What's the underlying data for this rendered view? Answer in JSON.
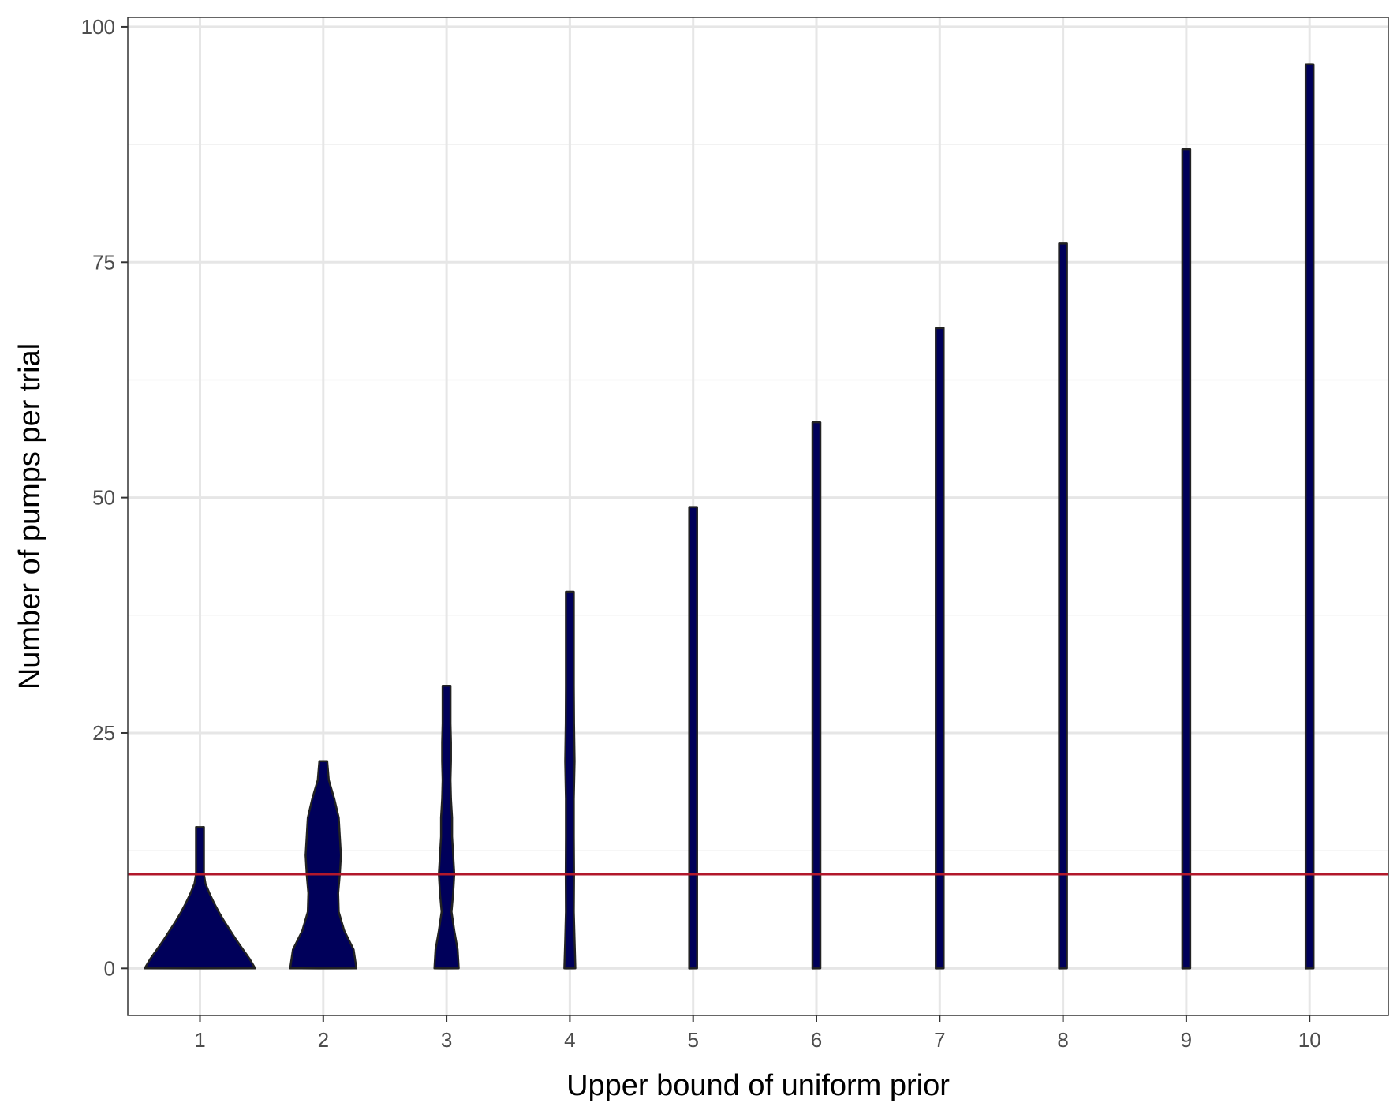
{
  "chart_data": {
    "type": "violin",
    "xlabel": "Upper bound of uniform prior",
    "ylabel": "Number of pumps per trial",
    "categories": [
      "1",
      "2",
      "3",
      "4",
      "5",
      "6",
      "7",
      "8",
      "9",
      "10"
    ],
    "ylim": [
      -5,
      101
    ],
    "yticks": [
      0,
      25,
      50,
      75,
      100
    ],
    "grid": true,
    "reference_line": {
      "y": 10,
      "color": "#b2182b"
    },
    "fill_color": "#00005a",
    "outline_color": "#222222",
    "series": [
      {
        "x": "1",
        "min": 0,
        "max": 15,
        "density": [
          [
            0,
            1.0
          ],
          [
            1,
            0.9
          ],
          [
            2,
            0.78
          ],
          [
            3,
            0.66
          ],
          [
            4,
            0.55
          ],
          [
            5,
            0.44
          ],
          [
            6,
            0.34
          ],
          [
            7,
            0.25
          ],
          [
            8,
            0.17
          ],
          [
            9,
            0.1
          ],
          [
            10,
            0.05
          ],
          [
            11,
            0.025
          ],
          [
            12,
            0.015
          ],
          [
            13,
            0.01
          ],
          [
            15,
            0.005
          ]
        ]
      },
      {
        "x": "2",
        "min": 0,
        "max": 22,
        "density": [
          [
            0,
            0.6
          ],
          [
            2,
            0.55
          ],
          [
            4,
            0.38
          ],
          [
            6,
            0.28
          ],
          [
            8,
            0.27
          ],
          [
            10,
            0.3
          ],
          [
            12,
            0.32
          ],
          [
            14,
            0.3
          ],
          [
            16,
            0.28
          ],
          [
            18,
            0.2
          ],
          [
            20,
            0.1
          ],
          [
            22,
            0.02
          ]
        ]
      },
      {
        "x": "3",
        "min": 0,
        "max": 30,
        "density": [
          [
            0,
            0.22
          ],
          [
            2,
            0.2
          ],
          [
            4,
            0.14
          ],
          [
            6,
            0.09
          ],
          [
            8,
            0.12
          ],
          [
            10,
            0.14
          ],
          [
            12,
            0.12
          ],
          [
            14,
            0.1
          ],
          [
            16,
            0.1
          ],
          [
            18,
            0.08
          ],
          [
            20,
            0.06
          ],
          [
            22,
            0.08
          ],
          [
            24,
            0.08
          ],
          [
            26,
            0.06
          ],
          [
            28,
            0.04
          ],
          [
            30,
            0.02
          ]
        ]
      },
      {
        "x": "4",
        "min": 0,
        "max": 40,
        "density": [
          [
            0,
            0.1
          ],
          [
            3,
            0.085
          ],
          [
            6,
            0.07
          ],
          [
            10,
            0.075
          ],
          [
            14,
            0.07
          ],
          [
            18,
            0.06
          ],
          [
            22,
            0.085
          ],
          [
            26,
            0.075
          ],
          [
            30,
            0.05
          ],
          [
            34,
            0.04
          ],
          [
            37,
            0.035
          ],
          [
            40,
            0.02
          ]
        ]
      },
      {
        "x": "5",
        "min": 0,
        "max": 49,
        "density": [
          [
            0,
            0.05
          ],
          [
            4,
            0.055
          ],
          [
            8,
            0.045
          ],
          [
            12,
            0.04
          ],
          [
            16,
            0.045
          ],
          [
            20,
            0.05
          ],
          [
            24,
            0.055
          ],
          [
            28,
            0.045
          ],
          [
            32,
            0.045
          ],
          [
            36,
            0.045
          ],
          [
            40,
            0.04
          ],
          [
            44,
            0.035
          ],
          [
            47,
            0.02
          ],
          [
            49,
            0.01
          ]
        ]
      },
      {
        "x": "6",
        "min": 0,
        "max": 58,
        "density": [
          [
            0,
            0.035
          ],
          [
            5,
            0.032
          ],
          [
            10,
            0.03
          ],
          [
            15,
            0.025
          ],
          [
            20,
            0.035
          ],
          [
            25,
            0.032
          ],
          [
            30,
            0.03
          ],
          [
            35,
            0.03
          ],
          [
            40,
            0.028
          ],
          [
            45,
            0.032
          ],
          [
            50,
            0.03
          ],
          [
            55,
            0.02
          ],
          [
            58,
            0.01
          ]
        ]
      },
      {
        "x": "7",
        "min": 0,
        "max": 68,
        "density": [
          [
            0,
            0.022
          ],
          [
            8,
            0.02
          ],
          [
            16,
            0.022
          ],
          [
            22,
            0.02
          ],
          [
            28,
            0.025
          ],
          [
            34,
            0.02
          ],
          [
            40,
            0.022
          ],
          [
            46,
            0.02
          ],
          [
            52,
            0.024
          ],
          [
            58,
            0.02
          ],
          [
            64,
            0.015
          ],
          [
            68,
            0.01
          ]
        ]
      },
      {
        "x": "8",
        "min": 0,
        "max": 77,
        "density": [
          [
            0,
            0.012
          ],
          [
            8,
            0.016
          ],
          [
            16,
            0.017
          ],
          [
            24,
            0.016
          ],
          [
            32,
            0.016
          ],
          [
            40,
            0.014
          ],
          [
            48,
            0.016
          ],
          [
            56,
            0.015
          ],
          [
            64,
            0.014
          ],
          [
            72,
            0.012
          ],
          [
            77,
            0.008
          ]
        ]
      },
      {
        "x": "9",
        "min": 0,
        "max": 87,
        "density": [
          [
            0,
            0.01
          ],
          [
            10,
            0.013
          ],
          [
            20,
            0.013
          ],
          [
            30,
            0.014
          ],
          [
            40,
            0.013
          ],
          [
            50,
            0.012
          ],
          [
            60,
            0.013
          ],
          [
            70,
            0.012
          ],
          [
            80,
            0.011
          ],
          [
            87,
            0.007
          ]
        ]
      },
      {
        "x": "10",
        "min": 0,
        "max": 96,
        "density": [
          [
            0,
            0.008
          ],
          [
            12,
            0.01
          ],
          [
            24,
            0.01
          ],
          [
            36,
            0.011
          ],
          [
            48,
            0.01
          ],
          [
            60,
            0.01
          ],
          [
            72,
            0.01
          ],
          [
            84,
            0.009
          ],
          [
            96,
            0.006
          ]
        ]
      }
    ]
  }
}
